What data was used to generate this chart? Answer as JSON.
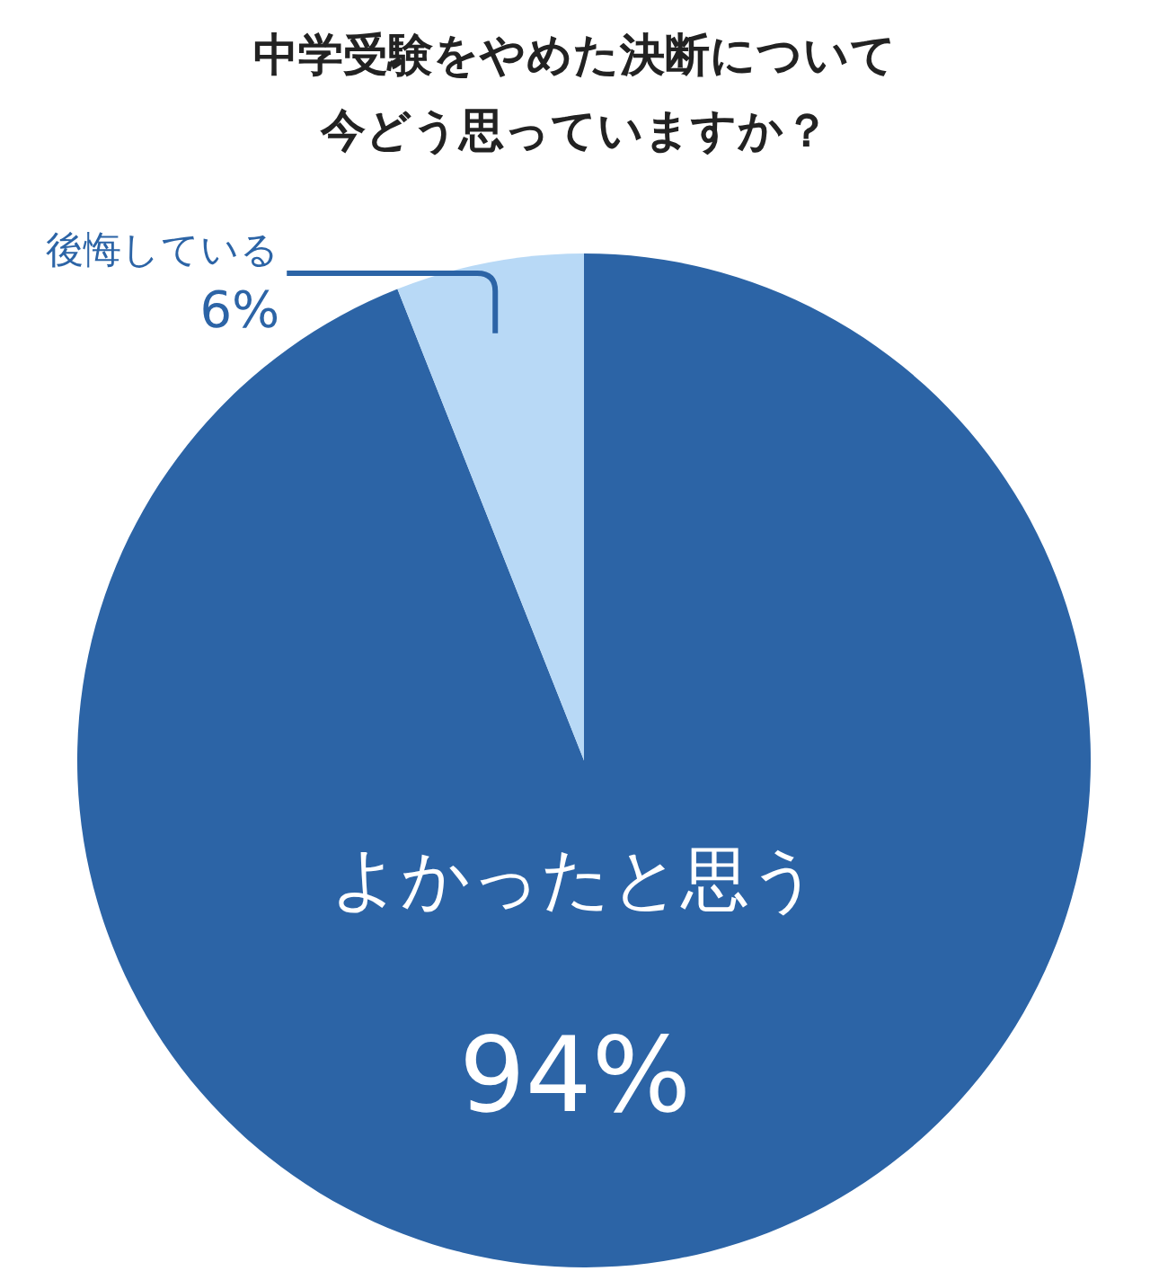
{
  "chart_data": {
    "type": "pie",
    "title": "中学受験をやめた決断について今どう思っていますか？",
    "categories": [
      "よかったと思う",
      "後悔している"
    ],
    "values": [
      94,
      6
    ],
    "value_labels": [
      "94%",
      "6%"
    ],
    "colors": [
      "#2c64a6",
      "#b8d9f6"
    ]
  }
}
